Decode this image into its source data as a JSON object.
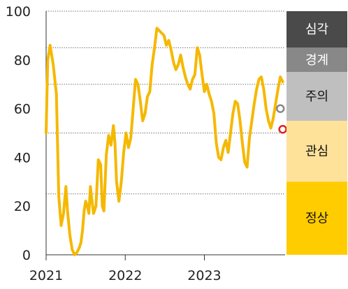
{
  "chart_data": {
    "type": "line",
    "x_ticks": [
      "2021",
      "2022",
      "2023"
    ],
    "y_ticks": [
      0,
      20,
      40,
      60,
      80,
      100
    ],
    "ylim": [
      0,
      100
    ],
    "xlim": [
      2021.0,
      2024.02
    ],
    "threshold_lines": [
      25,
      50,
      70,
      85,
      100
    ],
    "line_color": "#f5b800",
    "series": [
      {
        "x": [
          2021.0,
          2021.02,
          2021.05,
          2021.09,
          2021.13,
          2021.16,
          2021.19,
          2021.22,
          2021.25,
          2021.27,
          2021.3,
          2021.33,
          2021.36,
          2021.39,
          2021.42,
          2021.44,
          2021.46,
          2021.48,
          2021.5,
          2021.52,
          2021.54,
          2021.56,
          2021.58,
          2021.6,
          2021.63,
          2021.66,
          2021.69,
          2021.71,
          2021.73,
          2021.76,
          2021.79,
          2021.82,
          2021.85,
          2021.87,
          2021.89,
          2021.92,
          2021.95,
          2021.98,
          2022.01,
          2022.04,
          2022.07,
          2022.1,
          2022.13,
          2022.16,
          2022.19,
          2022.22,
          2022.25,
          2022.28,
          2022.31,
          2022.34,
          2022.37,
          2022.4,
          2022.43,
          2022.46,
          2022.49,
          2022.52,
          2022.55,
          2022.58,
          2022.61,
          2022.64,
          2022.67,
          2022.7,
          2022.73,
          2022.76,
          2022.79,
          2022.82,
          2022.85,
          2022.88,
          2022.91,
          2022.94,
          2022.97,
          2023.0,
          2023.03,
          2023.06,
          2023.09,
          2023.12,
          2023.15,
          2023.18,
          2023.21,
          2023.24,
          2023.27,
          2023.3,
          2023.33,
          2023.36,
          2023.39,
          2023.42,
          2023.45,
          2023.48,
          2023.51,
          2023.54,
          2023.57,
          2023.6,
          2023.63,
          2023.66,
          2023.69,
          2023.72,
          2023.75,
          2023.78,
          2023.81,
          2023.84,
          2023.87,
          2023.9,
          2023.93,
          2023.96,
          2023.99
        ],
        "y": [
          50,
          80,
          86,
          78,
          66,
          24,
          12,
          17,
          28,
          18,
          8,
          2,
          0,
          1,
          3,
          5,
          10,
          18,
          22,
          20,
          17,
          28,
          22,
          17,
          20,
          39,
          37,
          20,
          18,
          41,
          49,
          45,
          53,
          46,
          30,
          22,
          30,
          42,
          50,
          44,
          48,
          60,
          72,
          70,
          63,
          55,
          58,
          65,
          67,
          78,
          85,
          93,
          92,
          91,
          90,
          86,
          88,
          84,
          79,
          76,
          78,
          82,
          77,
          73,
          70,
          68,
          72,
          74,
          85,
          82,
          74,
          67,
          70,
          66,
          63,
          58,
          46,
          40,
          39,
          44,
          47,
          42,
          50,
          58,
          63,
          62,
          55,
          46,
          38,
          36,
          48,
          55,
          62,
          68,
          72,
          73,
          68,
          60,
          55,
          52,
          56,
          62,
          68,
          73,
          71
        ]
      }
    ],
    "markers": [
      {
        "name": "gray-marker",
        "x": 2023.96,
        "y": 60,
        "color": "#888888"
      },
      {
        "name": "red-marker",
        "x": 2023.99,
        "y": 51.5,
        "color": "#e0221b"
      }
    ],
    "bands": [
      {
        "label": "심각",
        "from": 85,
        "to": 100,
        "bg": "#4a4a4a",
        "fg": "#ffffff"
      },
      {
        "label": "경계",
        "from": 75,
        "to": 85,
        "bg": "#888888",
        "fg": "#ffffff"
      },
      {
        "label": "주의",
        "from": 55,
        "to": 75,
        "bg": "#bfbfbf",
        "fg": "#111111"
      },
      {
        "label": "관심",
        "from": 30,
        "to": 55,
        "bg": "#ffe29a",
        "fg": "#111111"
      },
      {
        "label": "정상",
        "from": 0,
        "to": 30,
        "bg": "#ffcc00",
        "fg": "#111111"
      }
    ]
  }
}
